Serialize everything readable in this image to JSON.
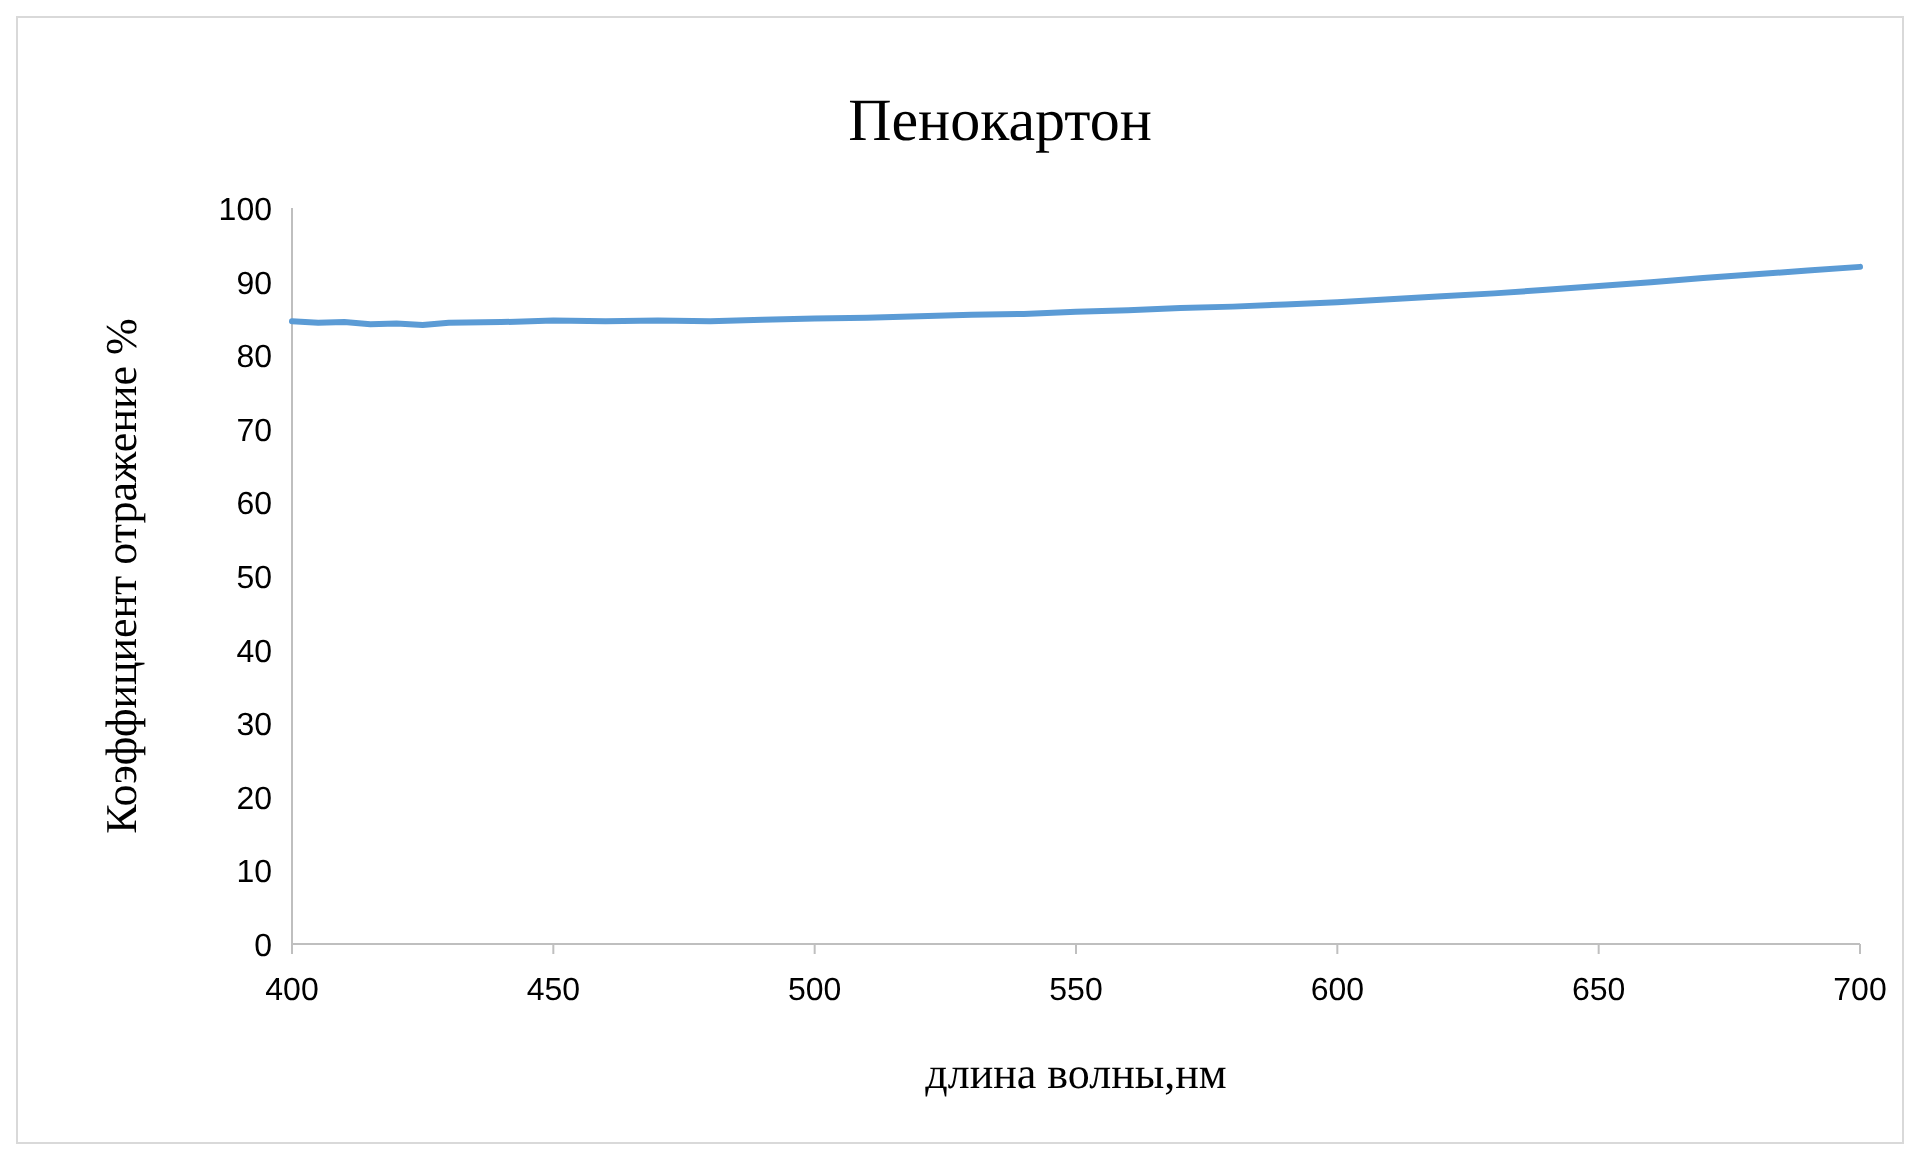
{
  "chart_data": {
    "type": "line",
    "title": "Пенокартон",
    "xlabel": "длина волны,нм",
    "ylabel": "Коэффициент отражение %",
    "series": [
      {
        "color": "#5b9bd5",
        "x": [
          400,
          405,
          410,
          415,
          420,
          425,
          430,
          440,
          450,
          460,
          470,
          480,
          490,
          500,
          510,
          520,
          530,
          540,
          550,
          560,
          570,
          580,
          590,
          600,
          610,
          620,
          630,
          640,
          650,
          660,
          670,
          680,
          690,
          700
        ],
        "values": [
          84.6,
          84.4,
          84.5,
          84.2,
          84.3,
          84.1,
          84.4,
          84.5,
          84.7,
          84.6,
          84.7,
          84.6,
          84.8,
          85.0,
          85.1,
          85.3,
          85.5,
          85.6,
          85.9,
          86.1,
          86.4,
          86.6,
          86.9,
          87.2,
          87.6,
          88.0,
          88.4,
          88.9,
          89.4,
          89.9,
          90.5,
          91.0,
          91.5,
          92.0
        ]
      }
    ],
    "xlim": [
      400,
      700
    ],
    "xticks": [
      400,
      450,
      500,
      550,
      600,
      650,
      700
    ],
    "ylim": [
      0,
      100
    ],
    "yticks": [
      0,
      10,
      20,
      30,
      40,
      50,
      60,
      70,
      80,
      90,
      100
    ],
    "grid": false,
    "marker": "none",
    "line_style": "solid"
  }
}
